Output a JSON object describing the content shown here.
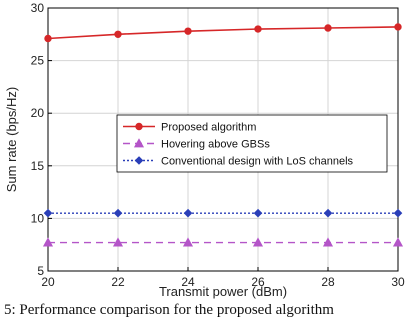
{
  "chart_data": {
    "type": "line",
    "title": "",
    "xlabel": "Transmit power (dBm)",
    "ylabel": "Sum rate (bps/Hz)",
    "xlim": [
      20,
      30
    ],
    "ylim": [
      5,
      30
    ],
    "xticks": [
      20,
      22,
      24,
      26,
      28,
      30
    ],
    "yticks": [
      5,
      10,
      15,
      20,
      25,
      30
    ],
    "x": [
      20,
      22,
      24,
      26,
      28,
      30
    ],
    "grid": true,
    "legend_position": "center",
    "series": [
      {
        "name": "Proposed algorithm",
        "values": [
          27.1,
          27.5,
          27.8,
          28.0,
          28.1,
          28.2
        ],
        "color": "#d62728",
        "marker": "circle",
        "line_style": "solid"
      },
      {
        "name": "Hovering above GBSs",
        "values": [
          7.7,
          7.7,
          7.7,
          7.7,
          7.7,
          7.7
        ],
        "color": "#b455c8",
        "marker": "triangle",
        "line_style": "dashed"
      },
      {
        "name": "Conventional design with LoS channels",
        "values": [
          10.5,
          10.5,
          10.5,
          10.5,
          10.5,
          10.5
        ],
        "color": "#2a3fb8",
        "marker": "diamond",
        "line_style": "dotted"
      }
    ]
  },
  "caption": {
    "text": "5: Performance comparison for the proposed algorithm"
  }
}
